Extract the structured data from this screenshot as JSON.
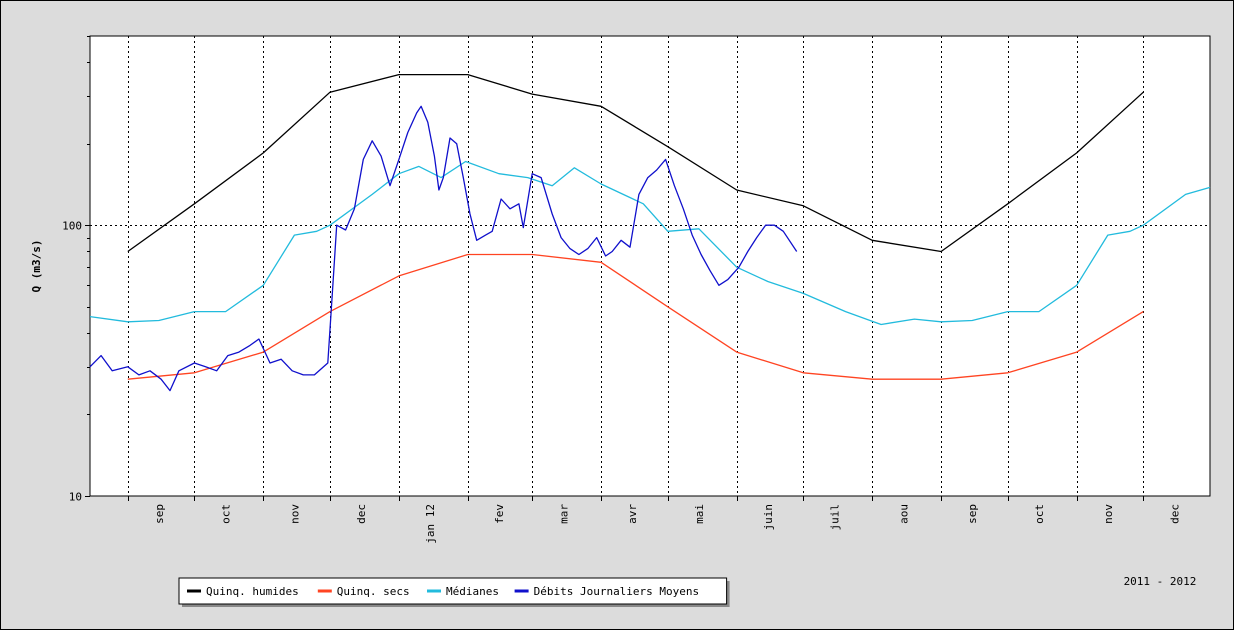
{
  "chart_data": {
    "type": "line",
    "ylabel": "Q (m3/s)",
    "y_scale": "log",
    "ylim": [
      10,
      500
    ],
    "y_ticks": [
      10,
      100
    ],
    "y_tick_labels": [
      "10",
      "100"
    ],
    "x_range": [
      "2011-08-15",
      "2012-12-31"
    ],
    "x_tick_dates": [
      "2011-09-01",
      "2011-10-01",
      "2011-11-01",
      "2011-12-01",
      "2012-01-01",
      "2012-02-01",
      "2012-03-01",
      "2012-04-01",
      "2012-05-01",
      "2012-06-01",
      "2012-07-01",
      "2012-08-01",
      "2012-09-01",
      "2012-10-01",
      "2012-11-01",
      "2012-12-01"
    ],
    "month_labels": [
      {
        "date": "2011-09-15",
        "label": "sep"
      },
      {
        "date": "2011-10-15",
        "label": "oct"
      },
      {
        "date": "2011-11-15",
        "label": "nov"
      },
      {
        "date": "2011-12-15",
        "label": "dec"
      },
      {
        "date": "2012-01-15",
        "label": "jan 12"
      },
      {
        "date": "2012-02-15",
        "label": "fev"
      },
      {
        "date": "2012-03-15",
        "label": "mar"
      },
      {
        "date": "2012-04-15",
        "label": "avr"
      },
      {
        "date": "2012-05-15",
        "label": "mai"
      },
      {
        "date": "2012-06-15",
        "label": "juin"
      },
      {
        "date": "2012-07-15",
        "label": "juil"
      },
      {
        "date": "2012-08-15",
        "label": "aou"
      },
      {
        "date": "2012-09-15",
        "label": "sep"
      },
      {
        "date": "2012-10-15",
        "label": "oct"
      },
      {
        "date": "2012-11-15",
        "label": "nov"
      },
      {
        "date": "2012-12-15",
        "label": "dec"
      }
    ],
    "grid": true,
    "legend_position": "bottom-left",
    "period_label": "2011 - 2012",
    "series": [
      {
        "name": "Quinq. humides",
        "color": "#000000",
        "points": [
          [
            "2011-09-01",
            80
          ],
          [
            "2011-10-01",
            120
          ],
          [
            "2011-11-01",
            185
          ],
          [
            "2011-12-01",
            310
          ],
          [
            "2012-01-01",
            360
          ],
          [
            "2012-02-01",
            360
          ],
          [
            "2012-03-01",
            305
          ],
          [
            "2012-04-01",
            275
          ],
          [
            "2012-05-01",
            195
          ],
          [
            "2012-06-01",
            135
          ],
          [
            "2012-07-01",
            118
          ],
          [
            "2012-08-01",
            88
          ],
          [
            "2012-09-01",
            80
          ],
          [
            "2012-10-01",
            120
          ],
          [
            "2012-11-01",
            185
          ],
          [
            "2012-12-01",
            310
          ]
        ]
      },
      {
        "name": "Quinq. secs",
        "color": "#ff4422",
        "points": [
          [
            "2011-09-01",
            27
          ],
          [
            "2011-10-01",
            28.5
          ],
          [
            "2011-11-01",
            34
          ],
          [
            "2011-12-01",
            48
          ],
          [
            "2012-01-01",
            65
          ],
          [
            "2012-02-01",
            78
          ],
          [
            "2012-03-01",
            78
          ],
          [
            "2012-04-01",
            73
          ],
          [
            "2012-05-01",
            50
          ],
          [
            "2012-06-01",
            34
          ],
          [
            "2012-07-01",
            28.5
          ],
          [
            "2012-08-01",
            27
          ],
          [
            "2012-09-01",
            27
          ],
          [
            "2012-10-01",
            28.5
          ],
          [
            "2012-11-01",
            34
          ],
          [
            "2012-12-01",
            48
          ]
        ]
      },
      {
        "name": "Médianes",
        "color": "#22bbdd",
        "points": [
          [
            "2011-08-15",
            46
          ],
          [
            "2011-09-01",
            44
          ],
          [
            "2011-09-15",
            44.5
          ],
          [
            "2011-10-01",
            48
          ],
          [
            "2011-10-15",
            48
          ],
          [
            "2011-11-01",
            60
          ],
          [
            "2011-11-15",
            92
          ],
          [
            "2011-11-25",
            95
          ],
          [
            "2011-12-01",
            100
          ],
          [
            "2011-12-20",
            130
          ],
          [
            "2012-01-01",
            155
          ],
          [
            "2012-01-10",
            165
          ],
          [
            "2012-01-20",
            150
          ],
          [
            "2012-01-31",
            172
          ],
          [
            "2012-02-15",
            155
          ],
          [
            "2012-02-28",
            150
          ],
          [
            "2012-03-10",
            140
          ],
          [
            "2012-03-20",
            163
          ],
          [
            "2012-04-01",
            142
          ],
          [
            "2012-04-20",
            120
          ],
          [
            "2012-05-01",
            95
          ],
          [
            "2012-05-15",
            97
          ],
          [
            "2012-06-01",
            70
          ],
          [
            "2012-06-15",
            62
          ],
          [
            "2012-07-01",
            56
          ],
          [
            "2012-07-20",
            48
          ],
          [
            "2012-08-05",
            43
          ],
          [
            "2012-08-20",
            45
          ],
          [
            "2012-09-01",
            44
          ],
          [
            "2012-09-15",
            44.5
          ],
          [
            "2012-10-01",
            48
          ],
          [
            "2012-10-15",
            48
          ],
          [
            "2012-11-01",
            60
          ],
          [
            "2012-11-15",
            92
          ],
          [
            "2012-11-25",
            95
          ],
          [
            "2012-12-01",
            100
          ],
          [
            "2012-12-20",
            130
          ],
          [
            "2012-12-31",
            138
          ]
        ]
      },
      {
        "name": "Débits Journaliers Moyens",
        "color": "#1010cc",
        "points": [
          [
            "2011-08-15",
            30
          ],
          [
            "2011-08-20",
            33
          ],
          [
            "2011-08-25",
            29
          ],
          [
            "2011-09-01",
            30
          ],
          [
            "2011-09-06",
            28
          ],
          [
            "2011-09-11",
            29
          ],
          [
            "2011-09-16",
            27
          ],
          [
            "2011-09-20",
            24.5
          ],
          [
            "2011-09-24",
            29
          ],
          [
            "2011-10-01",
            31
          ],
          [
            "2011-10-06",
            30
          ],
          [
            "2011-10-11",
            29
          ],
          [
            "2011-10-16",
            33
          ],
          [
            "2011-10-21",
            34
          ],
          [
            "2011-10-26",
            36
          ],
          [
            "2011-10-30",
            38
          ],
          [
            "2011-11-04",
            31
          ],
          [
            "2011-11-09",
            32
          ],
          [
            "2011-11-14",
            29
          ],
          [
            "2011-11-19",
            28
          ],
          [
            "2011-11-24",
            28
          ],
          [
            "2011-11-30",
            31
          ],
          [
            "2011-12-02",
            55
          ],
          [
            "2011-12-04",
            100
          ],
          [
            "2011-12-08",
            96
          ],
          [
            "2011-12-12",
            115
          ],
          [
            "2011-12-16",
            175
          ],
          [
            "2011-12-20",
            205
          ],
          [
            "2011-12-24",
            180
          ],
          [
            "2011-12-28",
            140
          ],
          [
            "2012-01-01",
            175
          ],
          [
            "2012-01-05",
            220
          ],
          [
            "2012-01-09",
            260
          ],
          [
            "2012-01-11",
            275
          ],
          [
            "2012-01-14",
            240
          ],
          [
            "2012-01-17",
            180
          ],
          [
            "2012-01-19",
            135
          ],
          [
            "2012-01-21",
            150
          ],
          [
            "2012-01-24",
            210
          ],
          [
            "2012-01-27",
            200
          ],
          [
            "2012-01-30",
            150
          ],
          [
            "2012-02-02",
            110
          ],
          [
            "2012-02-05",
            88
          ],
          [
            "2012-02-09",
            92
          ],
          [
            "2012-02-12",
            95
          ],
          [
            "2012-02-16",
            125
          ],
          [
            "2012-02-20",
            115
          ],
          [
            "2012-02-24",
            120
          ],
          [
            "2012-02-26",
            98
          ],
          [
            "2012-03-01",
            155
          ],
          [
            "2012-03-05",
            150
          ],
          [
            "2012-03-10",
            110
          ],
          [
            "2012-03-14",
            90
          ],
          [
            "2012-03-18",
            82
          ],
          [
            "2012-03-22",
            78
          ],
          [
            "2012-03-26",
            82
          ],
          [
            "2012-03-30",
            90
          ],
          [
            "2012-04-03",
            77
          ],
          [
            "2012-04-06",
            80
          ],
          [
            "2012-04-10",
            88
          ],
          [
            "2012-04-14",
            83
          ],
          [
            "2012-04-18",
            130
          ],
          [
            "2012-04-22",
            150
          ],
          [
            "2012-04-26",
            160
          ],
          [
            "2012-04-30",
            175
          ],
          [
            "2012-05-04",
            140
          ],
          [
            "2012-05-08",
            115
          ],
          [
            "2012-05-12",
            92
          ],
          [
            "2012-05-16",
            78
          ],
          [
            "2012-05-20",
            68
          ],
          [
            "2012-05-24",
            60
          ],
          [
            "2012-05-28",
            63
          ],
          [
            "2012-06-02",
            70
          ],
          [
            "2012-06-06",
            80
          ],
          [
            "2012-06-10",
            90
          ],
          [
            "2012-06-14",
            100
          ],
          [
            "2012-06-18",
            100
          ],
          [
            "2012-06-22",
            95
          ],
          [
            "2012-06-28",
            80
          ]
        ]
      }
    ]
  }
}
